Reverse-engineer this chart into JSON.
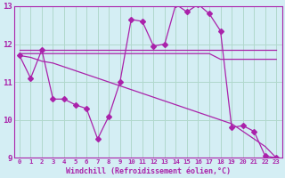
{
  "bg_color": "#d4eef4",
  "grid_color": "#b0d8cc",
  "line_color": "#aa22aa",
  "xlabel": "Windchill (Refroidissement éolien,°C)",
  "xlim": [
    -0.5,
    23.5
  ],
  "ylim": [
    9,
    13
  ],
  "yticks": [
    9,
    10,
    11,
    12,
    13
  ],
  "xticks": [
    0,
    1,
    2,
    3,
    4,
    5,
    6,
    7,
    8,
    9,
    10,
    11,
    12,
    13,
    14,
    15,
    16,
    17,
    18,
    19,
    20,
    21,
    22,
    23
  ],
  "series": [
    {
      "x": [
        0,
        1,
        2,
        3,
        4,
        5,
        6,
        7,
        8,
        9,
        10,
        11,
        12,
        13,
        14,
        15,
        16,
        17,
        18,
        19,
        20,
        21,
        22,
        23
      ],
      "y": [
        11.7,
        11.1,
        11.85,
        10.55,
        10.55,
        10.4,
        10.3,
        9.5,
        10.1,
        11.0,
        12.65,
        12.6,
        11.95,
        12.0,
        13.05,
        12.85,
        13.05,
        12.8,
        12.35,
        9.8,
        9.85,
        9.7,
        9.05,
        9.0
      ],
      "marker": "D",
      "markersize": 3,
      "linewidth": 0.9
    },
    {
      "x": [
        0,
        1,
        2,
        3,
        4,
        5,
        6,
        7,
        8,
        9,
        10,
        11,
        12,
        13,
        14,
        15,
        16,
        17,
        18,
        19,
        20,
        21,
        22,
        23
      ],
      "y": [
        11.75,
        11.75,
        11.75,
        11.75,
        11.75,
        11.75,
        11.75,
        11.75,
        11.75,
        11.75,
        11.75,
        11.75,
        11.75,
        11.75,
        11.75,
        11.75,
        11.75,
        11.75,
        11.6,
        11.6,
        11.6,
        11.6,
        11.6,
        11.6
      ],
      "marker": null,
      "markersize": 0,
      "linewidth": 0.9
    },
    {
      "x": [
        0,
        1,
        2,
        3,
        4,
        5,
        6,
        7,
        8,
        9,
        10,
        11,
        12,
        13,
        14,
        15,
        16,
        17,
        18,
        19,
        20,
        21,
        22,
        23
      ],
      "y": [
        11.7,
        11.65,
        11.55,
        11.5,
        11.4,
        11.3,
        11.2,
        11.1,
        11.0,
        10.9,
        10.8,
        10.7,
        10.6,
        10.5,
        10.4,
        10.3,
        10.2,
        10.1,
        10.0,
        9.9,
        9.7,
        9.5,
        9.3,
        9.0
      ],
      "marker": null,
      "markersize": 0,
      "linewidth": 0.9
    },
    {
      "x": [
        0,
        1,
        2,
        3,
        4,
        5,
        6,
        7,
        8,
        9,
        10,
        11,
        12,
        13,
        14,
        15,
        16,
        17,
        18,
        19,
        20,
        21,
        22,
        23
      ],
      "y": [
        11.85,
        11.85,
        11.85,
        11.85,
        11.85,
        11.85,
        11.85,
        11.85,
        11.85,
        11.85,
        11.85,
        11.85,
        11.85,
        11.85,
        11.85,
        11.85,
        11.85,
        11.85,
        11.85,
        11.85,
        11.85,
        11.85,
        11.85,
        11.85
      ],
      "marker": null,
      "markersize": 0,
      "linewidth": 0.9
    }
  ]
}
